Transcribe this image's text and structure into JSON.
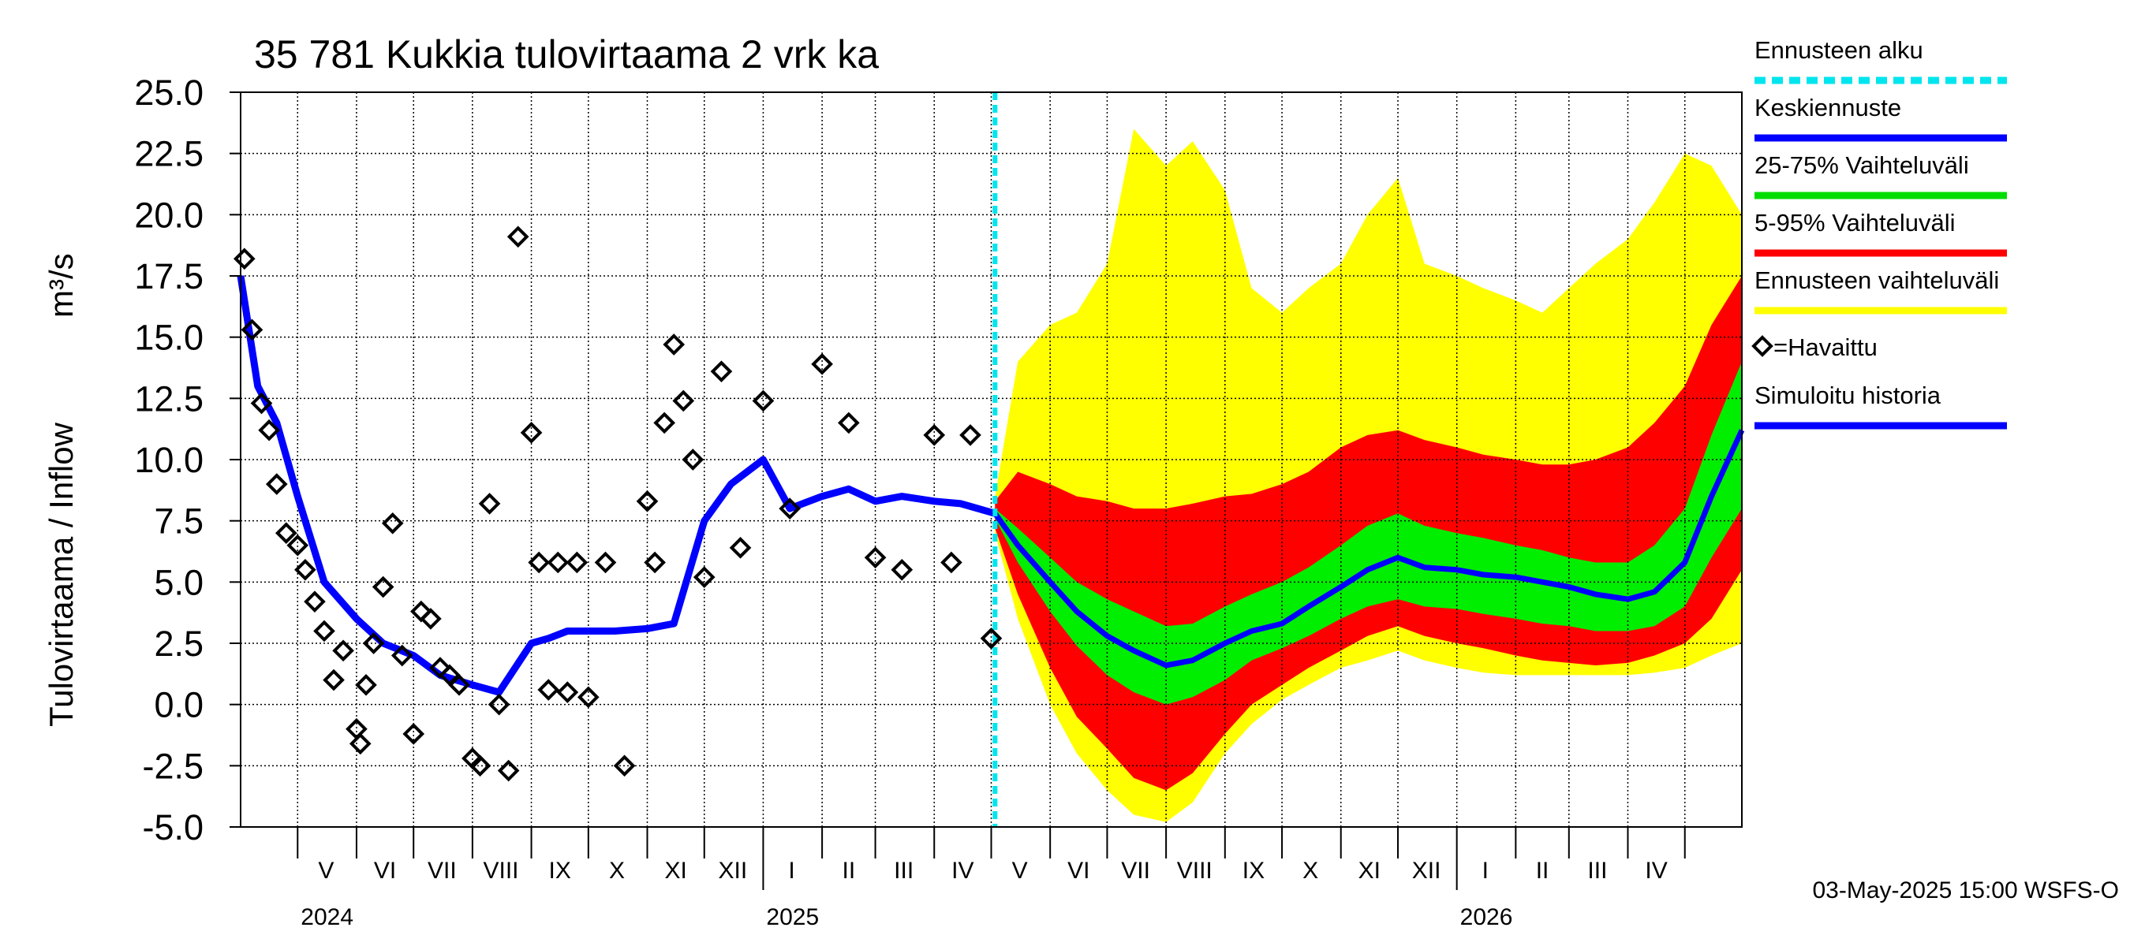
{
  "chart_data": {
    "type": "line",
    "title": "35 781 Kukkia tulovirtaama 2 vrk ka",
    "ylabel": "Tulovirtaama / Inflow",
    "yunit": "m³/s",
    "ylim": [
      -5.0,
      25.0
    ],
    "yticks": [
      "25.0",
      "22.5",
      "20.0",
      "17.5",
      "15.0",
      "12.5",
      "10.0",
      "7.5",
      "5.0",
      "2.5",
      "0.0",
      "-2.5",
      "-5.0"
    ],
    "grid": true,
    "x_start": "2024-04-01",
    "x_end": "2026-05-31",
    "month_ticks": [
      {
        "label": "V",
        "date": "2024-05-16"
      },
      {
        "label": "VI",
        "date": "2024-06-16"
      },
      {
        "label": "VII",
        "date": "2024-07-16"
      },
      {
        "label": "VIII",
        "date": "2024-08-16"
      },
      {
        "label": "IX",
        "date": "2024-09-16"
      },
      {
        "label": "X",
        "date": "2024-10-16"
      },
      {
        "label": "XI",
        "date": "2024-11-16"
      },
      {
        "label": "XII",
        "date": "2024-12-16"
      },
      {
        "label": "I",
        "date": "2025-01-16"
      },
      {
        "label": "II",
        "date": "2025-02-15"
      },
      {
        "label": "III",
        "date": "2025-03-16"
      },
      {
        "label": "IV",
        "date": "2025-04-16"
      },
      {
        "label": "V",
        "date": "2025-05-16"
      },
      {
        "label": "VI",
        "date": "2025-06-16"
      },
      {
        "label": "VII",
        "date": "2025-07-16"
      },
      {
        "label": "VIII",
        "date": "2025-08-16"
      },
      {
        "label": "IX",
        "date": "2025-09-16"
      },
      {
        "label": "X",
        "date": "2025-10-16"
      },
      {
        "label": "XI",
        "date": "2025-11-16"
      },
      {
        "label": "XII",
        "date": "2025-12-16"
      },
      {
        "label": "I",
        "date": "2026-01-16"
      },
      {
        "label": "II",
        "date": "2026-02-15"
      },
      {
        "label": "III",
        "date": "2026-03-16"
      },
      {
        "label": "IV",
        "date": "2026-04-16"
      }
    ],
    "year_labels": [
      {
        "label": "2024",
        "date": "2024-05-01"
      },
      {
        "label": "2025",
        "date": "2025-01-01"
      },
      {
        "label": "2026",
        "date": "2026-01-01"
      }
    ],
    "forecast_start": "2025-05-03",
    "legend": [
      {
        "label": "Ennusteen alku",
        "color": "#00e5ee",
        "style": "dashed"
      },
      {
        "label": "Keskiennuste",
        "color": "#0000ff",
        "style": "line"
      },
      {
        "label": "25-75% Vaihteluväli",
        "color": "#00dd00",
        "style": "line"
      },
      {
        "label": "5-95% Vaihteluväli",
        "color": "#ff0000",
        "style": "line"
      },
      {
        "label": "Ennusteen vaihteluväli",
        "color": "#ffff00",
        "style": "line"
      },
      {
        "label": "=Havaittu",
        "color": "#000000",
        "style": "diamond"
      },
      {
        "label": "Simuloitu historia",
        "color": "#0000ff",
        "style": "line"
      }
    ],
    "footer": "03-May-2025 15:00 WSFS-O",
    "simulated_history": {
      "x": [
        "2024-04-01",
        "2024-04-10",
        "2024-04-20",
        "2024-05-01",
        "2024-05-15",
        "2024-06-01",
        "2024-06-15",
        "2024-07-01",
        "2024-07-15",
        "2024-08-01",
        "2024-08-15",
        "2024-09-01",
        "2024-09-10",
        "2024-09-20",
        "2024-10-01",
        "2024-10-15",
        "2024-11-01",
        "2024-11-15",
        "2024-12-01",
        "2024-12-15",
        "2025-01-01",
        "2025-01-15",
        "2025-02-01",
        "2025-02-15",
        "2025-03-01",
        "2025-03-15",
        "2025-04-01",
        "2025-04-15",
        "2025-05-03"
      ],
      "values": [
        17.5,
        13.0,
        11.5,
        8.5,
        5.0,
        3.5,
        2.5,
        2.0,
        1.2,
        0.8,
        0.5,
        2.5,
        2.7,
        3.0,
        3.0,
        3.0,
        3.1,
        3.3,
        7.5,
        9.0,
        10.0,
        8.0,
        8.5,
        8.8,
        8.3,
        8.5,
        8.3,
        8.2,
        7.8
      ]
    },
    "observed": {
      "x": [
        "2024-04-03",
        "2024-04-07",
        "2024-04-12",
        "2024-04-16",
        "2024-04-20",
        "2024-04-25",
        "2024-05-01",
        "2024-05-05",
        "2024-05-10",
        "2024-05-15",
        "2024-05-20",
        "2024-05-25",
        "2024-06-01",
        "2024-06-03",
        "2024-06-06",
        "2024-06-10",
        "2024-06-15",
        "2024-06-20",
        "2024-06-25",
        "2024-07-01",
        "2024-07-05",
        "2024-07-10",
        "2024-07-15",
        "2024-07-20",
        "2024-07-25",
        "2024-08-01",
        "2024-08-05",
        "2024-08-10",
        "2024-08-15",
        "2024-08-20",
        "2024-08-25",
        "2024-09-01",
        "2024-09-05",
        "2024-09-10",
        "2024-09-15",
        "2024-09-20",
        "2024-09-25",
        "2024-10-01",
        "2024-10-10",
        "2024-10-20",
        "2024-11-01",
        "2024-11-05",
        "2024-11-10",
        "2024-11-15",
        "2024-11-20",
        "2024-11-25",
        "2024-12-01",
        "2024-12-10",
        "2024-12-20",
        "2025-01-01",
        "2025-01-15",
        "2025-02-01",
        "2025-02-15",
        "2025-03-01",
        "2025-03-15",
        "2025-04-01",
        "2025-04-10",
        "2025-04-20",
        "2025-05-01"
      ],
      "values": [
        18.2,
        15.3,
        12.3,
        11.2,
        9.0,
        7.0,
        6.5,
        5.5,
        4.2,
        3.0,
        1.0,
        2.2,
        -1.0,
        -1.6,
        0.8,
        2.5,
        4.8,
        7.4,
        2.0,
        -1.2,
        3.8,
        3.5,
        1.5,
        1.2,
        0.8,
        -2.2,
        -2.5,
        8.2,
        0.0,
        -2.7,
        19.1,
        11.1,
        5.8,
        0.6,
        5.8,
        0.5,
        5.8,
        0.3,
        5.8,
        -2.5,
        8.3,
        5.8,
        11.5,
        14.7,
        12.4,
        10.0,
        5.2,
        13.6,
        6.4,
        12.4,
        8.0,
        13.9,
        11.5,
        6.0,
        5.5,
        11.0,
        5.8,
        11.0,
        2.7
      ]
    },
    "forecast_mean": {
      "x": [
        "2025-05-03",
        "2025-05-15",
        "2025-06-01",
        "2025-06-15",
        "2025-07-01",
        "2025-07-15",
        "2025-08-01",
        "2025-08-15",
        "2025-09-01",
        "2025-09-15",
        "2025-10-01",
        "2025-10-15",
        "2025-11-01",
        "2025-11-15",
        "2025-12-01",
        "2025-12-15",
        "2026-01-01",
        "2026-01-15",
        "2026-02-01",
        "2026-02-15",
        "2026-03-01",
        "2026-03-15",
        "2026-04-01",
        "2026-04-15",
        "2026-05-01",
        "2026-05-15",
        "2026-05-31"
      ],
      "values": [
        7.8,
        6.5,
        5.0,
        3.8,
        2.8,
        2.2,
        1.6,
        1.8,
        2.5,
        3.0,
        3.3,
        4.0,
        4.8,
        5.5,
        6.0,
        5.6,
        5.5,
        5.3,
        5.2,
        5.0,
        4.8,
        4.5,
        4.3,
        4.6,
        5.8,
        8.5,
        11.2
      ]
    },
    "band_25_75": {
      "low": [
        7.6,
        5.8,
        3.8,
        2.4,
        1.2,
        0.5,
        0.0,
        0.3,
        1.0,
        1.8,
        2.3,
        2.8,
        3.5,
        4.0,
        4.3,
        4.0,
        3.9,
        3.7,
        3.5,
        3.3,
        3.2,
        3.0,
        3.0,
        3.2,
        4.0,
        6.0,
        8.0
      ],
      "high": [
        8.0,
        7.2,
        6.0,
        5.0,
        4.3,
        3.8,
        3.2,
        3.3,
        4.0,
        4.5,
        5.0,
        5.6,
        6.5,
        7.3,
        7.8,
        7.3,
        7.0,
        6.8,
        6.5,
        6.3,
        6.0,
        5.8,
        5.8,
        6.5,
        8.0,
        11.0,
        14.0
      ]
    },
    "band_5_95": {
      "low": [
        7.2,
        4.5,
        1.5,
        -0.5,
        -1.8,
        -3.0,
        -3.5,
        -2.8,
        -1.2,
        0.0,
        0.8,
        1.5,
        2.2,
        2.8,
        3.2,
        2.8,
        2.5,
        2.3,
        2.0,
        1.8,
        1.7,
        1.6,
        1.7,
        2.0,
        2.5,
        3.5,
        5.5
      ],
      "high": [
        8.3,
        9.5,
        9.0,
        8.5,
        8.3,
        8.0,
        8.0,
        8.2,
        8.5,
        8.6,
        9.0,
        9.5,
        10.5,
        11.0,
        11.2,
        10.8,
        10.5,
        10.2,
        10.0,
        9.8,
        9.8,
        10.0,
        10.5,
        11.5,
        13.0,
        15.5,
        17.5
      ]
    },
    "band_full": {
      "low": [
        7.0,
        3.5,
        0.0,
        -2.0,
        -3.5,
        -4.5,
        -4.8,
        -4.0,
        -2.0,
        -0.8,
        0.2,
        0.8,
        1.5,
        1.8,
        2.2,
        1.8,
        1.5,
        1.3,
        1.2,
        1.2,
        1.2,
        1.2,
        1.2,
        1.3,
        1.5,
        2.0,
        2.5
      ],
      "high": [
        8.5,
        14.0,
        15.5,
        16.0,
        18.0,
        23.5,
        22.0,
        23.0,
        21.0,
        17.0,
        16.0,
        17.0,
        18.0,
        20.0,
        21.5,
        18.0,
        17.5,
        17.0,
        16.5,
        16.0,
        17.0,
        18.0,
        19.0,
        20.5,
        22.5,
        22.0,
        20.0
      ]
    }
  }
}
